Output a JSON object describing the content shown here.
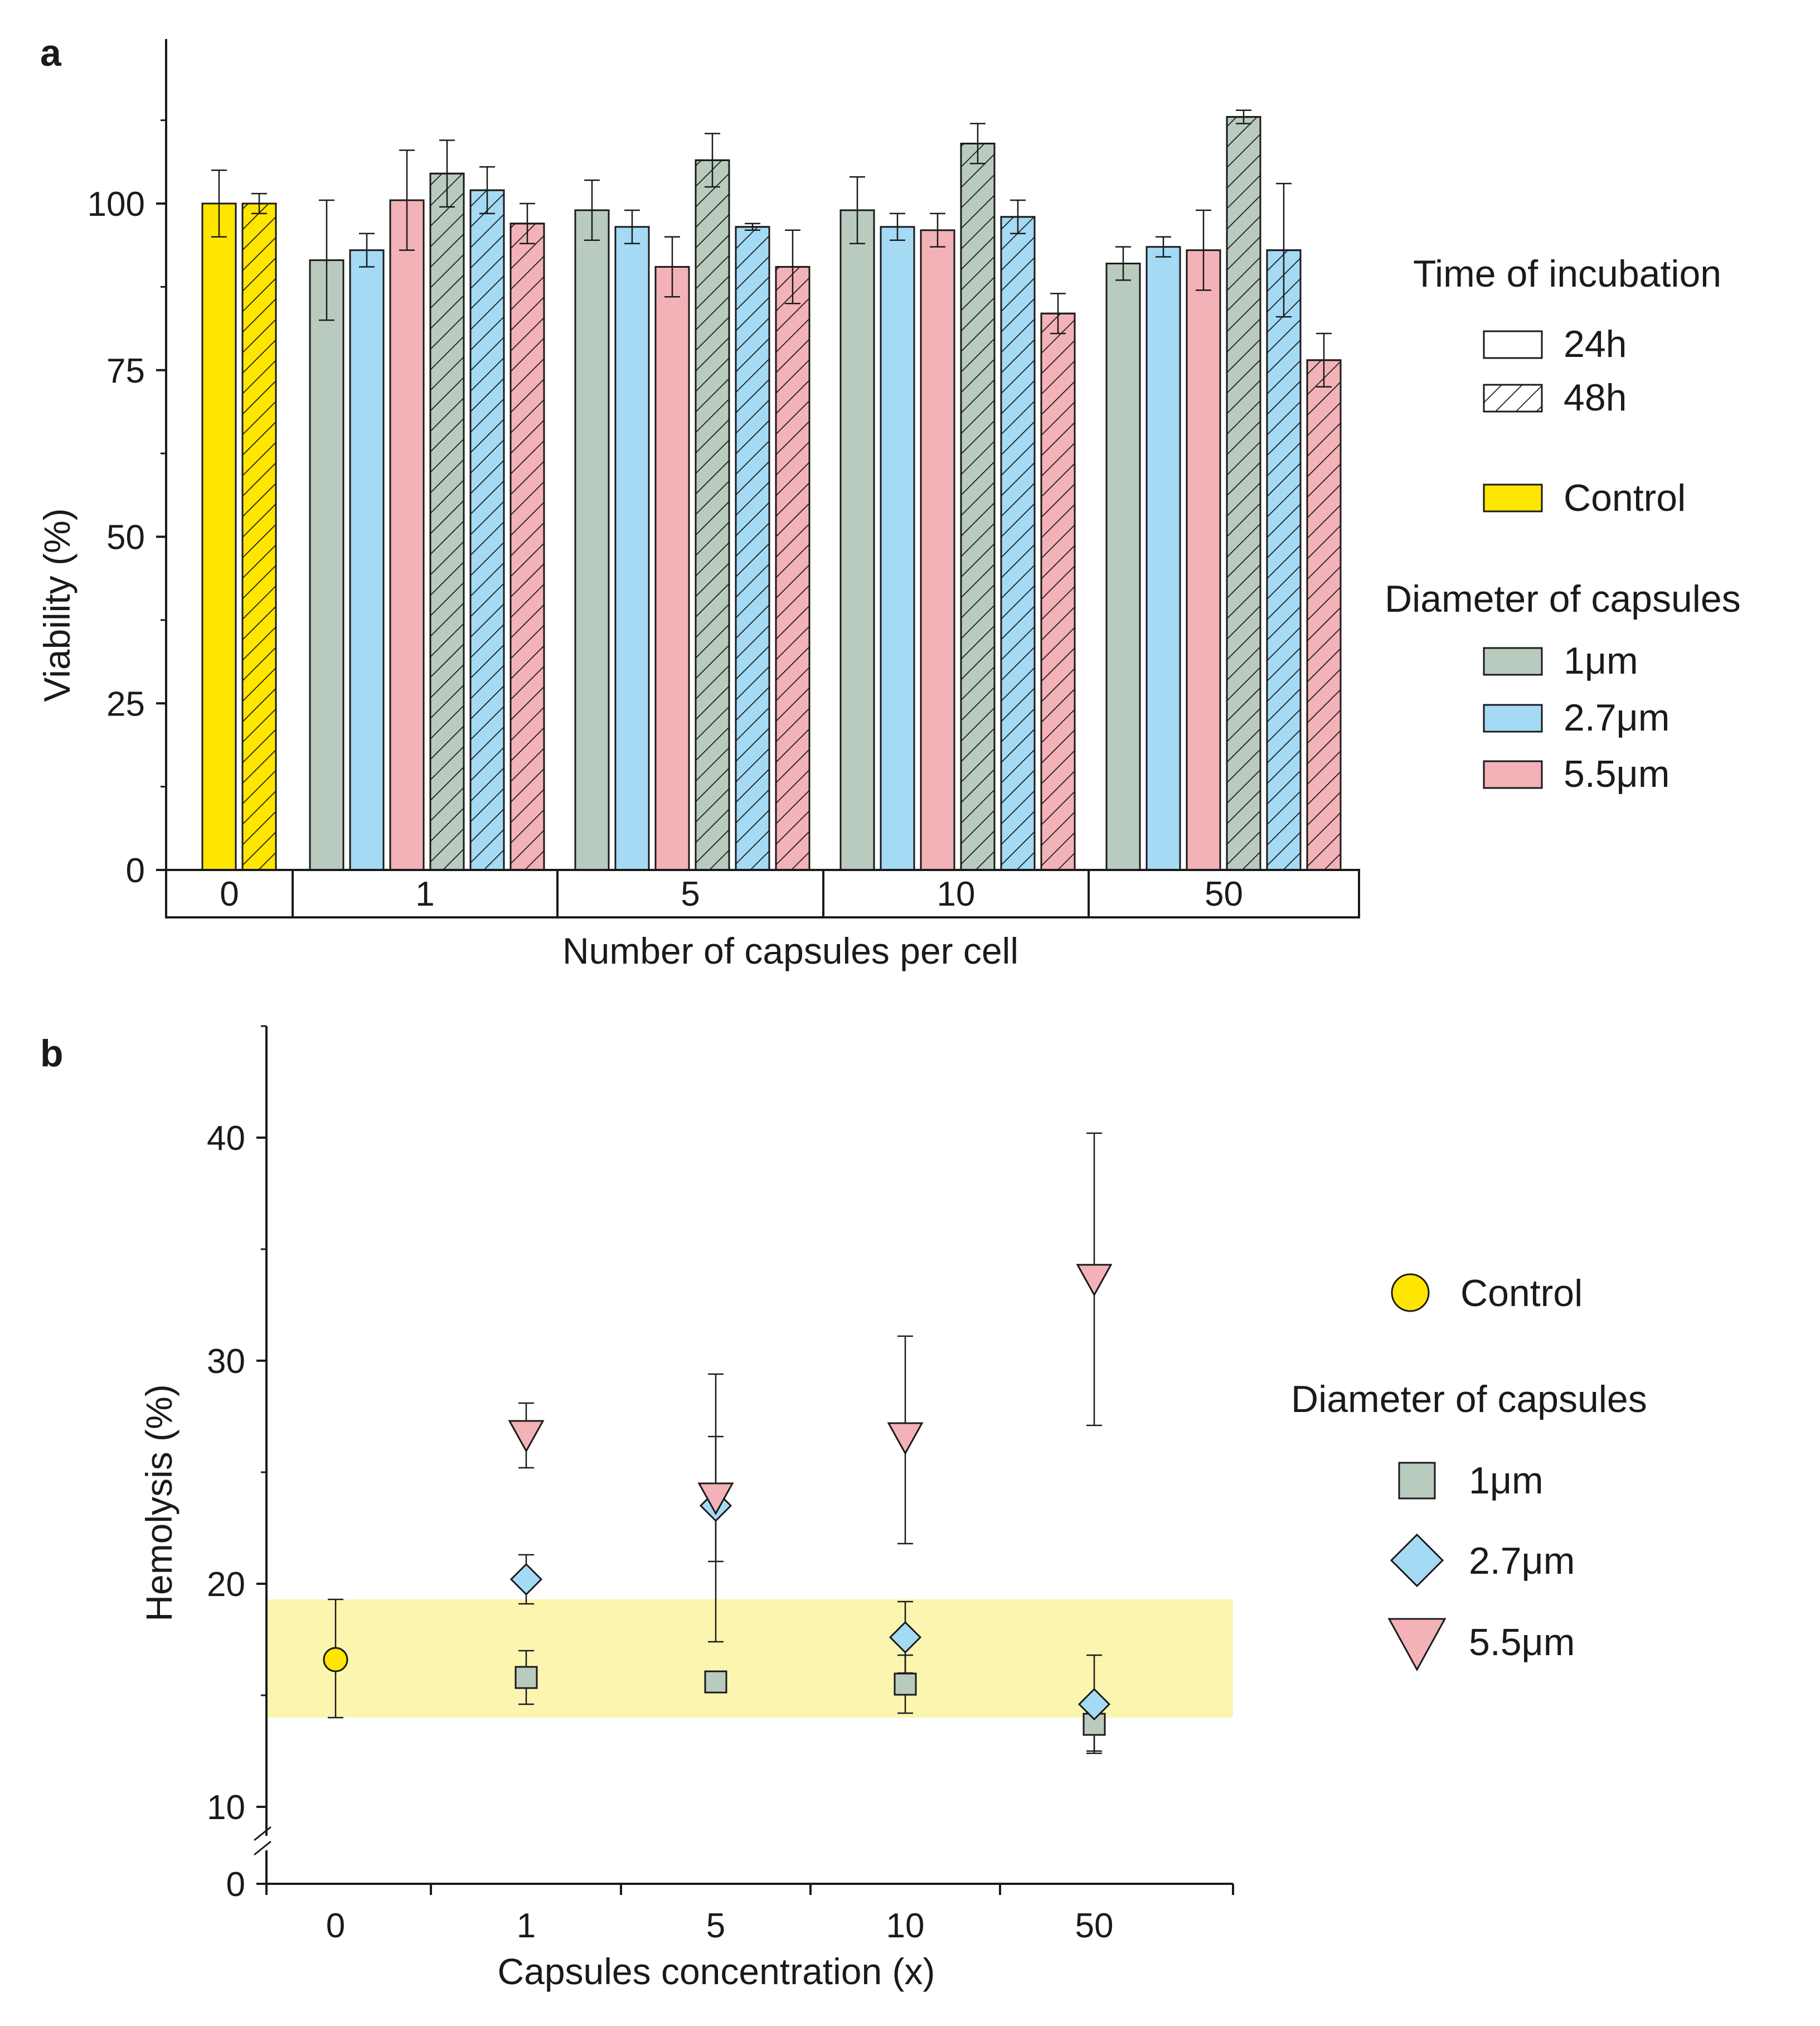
{
  "colors": {
    "control": "#FFE600",
    "d1": "#B9CBBE",
    "d27": "#A5DAF4",
    "d55": "#F3B2B7",
    "band": "#FBF5B0",
    "axis": "#1a1a1a"
  },
  "chart_data": [
    {
      "panel": "a",
      "type": "bar",
      "xlabel": "Number of capsules per cell",
      "ylabel": "Viability (%)",
      "ylim": [
        0,
        125
      ],
      "yticks": [
        "0",
        "25",
        "50",
        "75",
        "100"
      ],
      "groups": [
        {
          "label": "0",
          "bars": [
            {
              "series": "Control",
              "time": "24h",
              "value": 100,
              "err": 5
            },
            {
              "series": "Control",
              "time": "48h",
              "value": 100,
              "err": 1.5
            }
          ]
        },
        {
          "label": "1",
          "bars": [
            {
              "series": "1μm",
              "time": "24h",
              "value": 91.5,
              "err": 9
            },
            {
              "series": "2.7μm",
              "time": "24h",
              "value": 93,
              "err": 2.5
            },
            {
              "series": "5.5μm",
              "time": "24h",
              "value": 100.5,
              "err": 7.5
            },
            {
              "series": "1μm",
              "time": "48h",
              "value": 104.5,
              "err": 5
            },
            {
              "series": "2.7μm",
              "time": "48h",
              "value": 102,
              "err": 3.5
            },
            {
              "series": "5.5μm",
              "time": "48h",
              "value": 97,
              "err": 3
            }
          ]
        },
        {
          "label": "5",
          "bars": [
            {
              "series": "1μm",
              "time": "24h",
              "value": 99,
              "err": 4.5
            },
            {
              "series": "2.7μm",
              "time": "24h",
              "value": 96.5,
              "err": 2.5
            },
            {
              "series": "5.5μm",
              "time": "24h",
              "value": 90.5,
              "err": 4.5
            },
            {
              "series": "1μm",
              "time": "48h",
              "value": 106.5,
              "err": 4
            },
            {
              "series": "2.7μm",
              "time": "48h",
              "value": 96.5,
              "err": 0.5
            },
            {
              "series": "5.5μm",
              "time": "48h",
              "value": 90.5,
              "err": 5.5
            }
          ]
        },
        {
          "label": "10",
          "bars": [
            {
              "series": "1μm",
              "time": "24h",
              "value": 99,
              "err": 5
            },
            {
              "series": "2.7μm",
              "time": "24h",
              "value": 96.5,
              "err": 2
            },
            {
              "series": "5.5μm",
              "time": "24h",
              "value": 96,
              "err": 2.5
            },
            {
              "series": "1μm",
              "time": "48h",
              "value": 109,
              "err": 3
            },
            {
              "series": "2.7μm",
              "time": "48h",
              "value": 98,
              "err": 2.5
            },
            {
              "series": "5.5μm",
              "time": "48h",
              "value": 83.5,
              "err": 3
            }
          ]
        },
        {
          "label": "50",
          "bars": [
            {
              "series": "1μm",
              "time": "24h",
              "value": 91,
              "err": 2.5
            },
            {
              "series": "2.7μm",
              "time": "24h",
              "value": 93.5,
              "err": 1.5
            },
            {
              "series": "5.5μm",
              "time": "24h",
              "value": 93,
              "err": 6
            },
            {
              "series": "1μm",
              "time": "48h",
              "value": 113,
              "err": 1
            },
            {
              "series": "2.7μm",
              "time": "48h",
              "value": 93,
              "err": 10
            },
            {
              "series": "5.5μm",
              "time": "48h",
              "value": 76.5,
              "err": 4
            }
          ]
        }
      ],
      "legend": {
        "time_title": "Time of incubation",
        "time_items": [
          "24h",
          "48h"
        ],
        "control_label": "Control",
        "diameter_title": "Diameter of capsules",
        "diameter_items": [
          "1μm",
          "2.7μm",
          "5.5μm"
        ]
      }
    },
    {
      "panel": "b",
      "type": "scatter",
      "xlabel": "Capsules concentration (x)",
      "ylabel": "Hemolysis (%)",
      "ylim": [
        10,
        45
      ],
      "yticks": [
        "10",
        "20",
        "30",
        "40"
      ],
      "y_break_label": "0",
      "categories": [
        "0",
        "1",
        "5",
        "10",
        "50"
      ],
      "control_band": [
        14,
        19.3
      ],
      "series": [
        {
          "name": "Control",
          "marker": "circle",
          "points": [
            {
              "x": "0",
              "y": 16.6,
              "lo": 14.0,
              "hi": 19.3
            }
          ]
        },
        {
          "name": "1μm",
          "marker": "square",
          "points": [
            {
              "x": "1",
              "y": 15.8,
              "lo": 14.6,
              "hi": 17.0
            },
            {
              "x": "5",
              "y": 15.6,
              "lo": 15.3,
              "hi": 15.9
            },
            {
              "x": "10",
              "y": 15.5,
              "lo": 14.2,
              "hi": 16.8
            },
            {
              "x": "50",
              "y": 13.7,
              "lo": 12.5,
              "hi": 14.9
            }
          ]
        },
        {
          "name": "2.7μm",
          "marker": "diamond",
          "points": [
            {
              "x": "1",
              "y": 20.2,
              "lo": 19.1,
              "hi": 21.3
            },
            {
              "x": "5",
              "y": 23.5,
              "lo": 17.4,
              "hi": 29.4
            },
            {
              "x": "10",
              "y": 17.6,
              "lo": 16.0,
              "hi": 19.2
            },
            {
              "x": "50",
              "y": 14.6,
              "lo": 12.4,
              "hi": 16.8
            }
          ]
        },
        {
          "name": "5.5μm",
          "marker": "triangle-down",
          "points": [
            {
              "x": "1",
              "y": 26.6,
              "lo": 25.2,
              "hi": 28.1
            },
            {
              "x": "5",
              "y": 23.8,
              "lo": 21.0,
              "hi": 26.6
            },
            {
              "x": "10",
              "y": 26.5,
              "lo": 21.8,
              "hi": 31.1
            },
            {
              "x": "50",
              "y": 33.6,
              "lo": 27.1,
              "hi": 40.2
            }
          ]
        }
      ],
      "legend": {
        "control_label": "Control",
        "diameter_title": "Diameter of capsules",
        "diameter_items": [
          "1μm",
          "2.7μm",
          "5.5μm"
        ]
      }
    }
  ]
}
